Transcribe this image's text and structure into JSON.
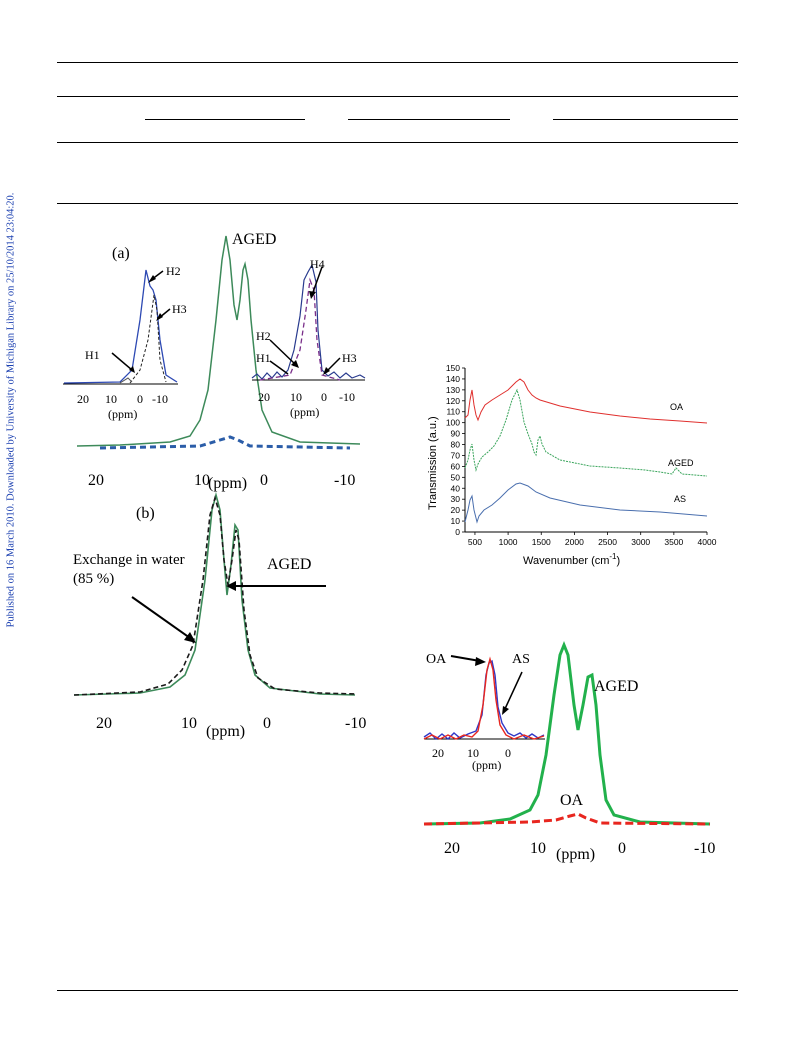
{
  "side_note": "Published on 16 March 2010. Downloaded by University of Michigan Library on 25/10/2014 23:04:20.",
  "figure_nmr_a": {
    "panel_label": "(a)",
    "sample_label": "AGED",
    "x_ticks": [
      "20",
      "10",
      "0",
      "-10"
    ],
    "x_unit": "(ppm)",
    "inset_left": {
      "labels": [
        "H2",
        "H3",
        "H1"
      ],
      "x_ticks": [
        "20",
        "10",
        "0",
        "-10"
      ],
      "x_unit": "(ppm)"
    },
    "inset_right": {
      "labels": [
        "H4",
        "H2",
        "H1",
        "H3"
      ],
      "x_ticks": [
        "20",
        "10",
        "0",
        "-10"
      ],
      "x_unit": "(ppm)"
    }
  },
  "figure_nmr_b": {
    "panel_label": "(b)",
    "annotation_water": "Exchange in water",
    "annotation_water_pct": "(85 %)",
    "annotation_aged": "AGED",
    "x_ticks": [
      "20",
      "10",
      "0",
      "-10"
    ],
    "x_unit": "(ppm)"
  },
  "figure_ir": {
    "ylabel": "Transmission (a.u.)",
    "xlabel": "Wavenumber (cm",
    "xlabel_sup": "-1",
    "xlabel_end": ")",
    "y_ticks": [
      "150",
      "140",
      "130",
      "120",
      "110",
      "100",
      "90",
      "80",
      "70",
      "60",
      "50",
      "40",
      "30",
      "20",
      "10",
      "0"
    ],
    "x_ticks": [
      "500",
      "1000",
      "1500",
      "2000",
      "2500",
      "3000",
      "3500",
      "4000"
    ],
    "series_labels": [
      "OA",
      "AGED",
      "AS"
    ],
    "colors": {
      "OA": "#e0302e",
      "AGED": "#3aa55c",
      "AS": "#4a6fae"
    }
  },
  "figure_nmr_c": {
    "label_aged": "AGED",
    "label_oa": "OA",
    "inset_labels": [
      "OA",
      "AS"
    ],
    "inset_x_ticks": [
      "20",
      "10",
      "0"
    ],
    "inset_x_unit": "(ppm)",
    "x_ticks": [
      "20",
      "10",
      "0",
      "-10"
    ],
    "x_unit": "(ppm)",
    "colors": {
      "AGED": "#22b14c",
      "OA": "#e8261f"
    }
  }
}
